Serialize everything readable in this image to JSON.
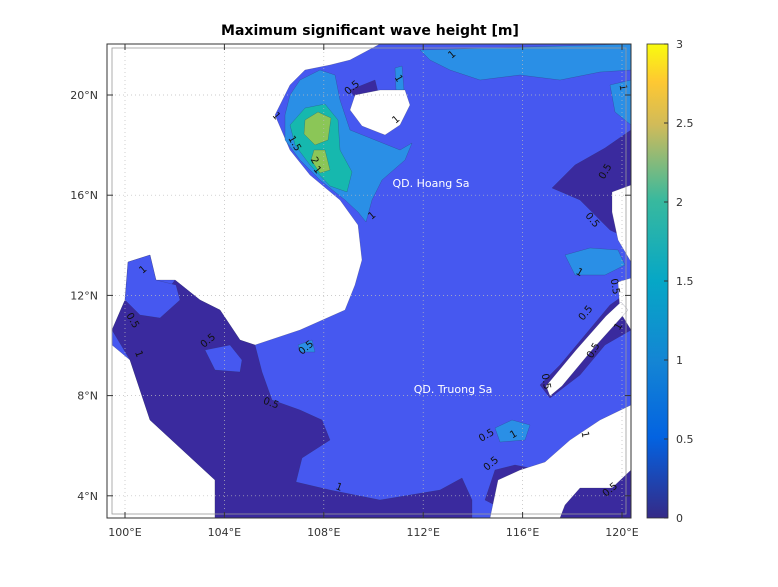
{
  "chart_data": {
    "type": "contour",
    "title": "Maximum significant wave height [m]",
    "colorbar": {
      "range": [
        0,
        3
      ],
      "ticks": [
        "0",
        "0.5",
        "1",
        "1.5",
        "2",
        "2.5",
        "3"
      ],
      "colormap": "parula"
    },
    "lon_range": [
      99.3,
      120.3
    ],
    "lat_range": [
      3.0,
      22.0
    ],
    "x_ticks": [
      {
        "value": 100,
        "label": "100°E"
      },
      {
        "value": 104,
        "label": "104°E"
      },
      {
        "value": 108,
        "label": "108°E"
      },
      {
        "value": 112,
        "label": "112°E"
      },
      {
        "value": 116,
        "label": "116°E"
      },
      {
        "value": 120,
        "label": "120°E"
      }
    ],
    "y_ticks": [
      {
        "value": 20,
        "label": "20°N"
      },
      {
        "value": 16,
        "label": "16°N"
      },
      {
        "value": 12,
        "label": "12°N"
      },
      {
        "value": 8,
        "label": "8°N"
      },
      {
        "value": 4,
        "label": "4°N"
      }
    ],
    "grid": true,
    "contour_levels": [
      0.5,
      1,
      1.5,
      2
    ],
    "level_colors": {
      "0-0.5": "#3a2a9e",
      "0.5-1": "#4658f0",
      "1-1.5": "#2a8fe6",
      "1.5-2": "#16b8ae",
      "2-2.5": "#8bc657",
      "land": "#ffffff"
    },
    "contour_labels": [
      "1",
      "0.5",
      "1",
      "1",
      "1",
      "1.5",
      "2",
      "1",
      "1",
      "1",
      "0.5",
      "0.5",
      "1",
      "0.5",
      "0.5",
      "1",
      "0.5",
      "0.5",
      "1",
      "0.5",
      "0.5",
      "1",
      "1",
      "0.5",
      "0.5",
      "0.5",
      "0.5",
      "0.5",
      "1",
      "1"
    ],
    "place_labels": [
      "QD. Hoang Sa",
      "QD. Truong Sa"
    ]
  }
}
